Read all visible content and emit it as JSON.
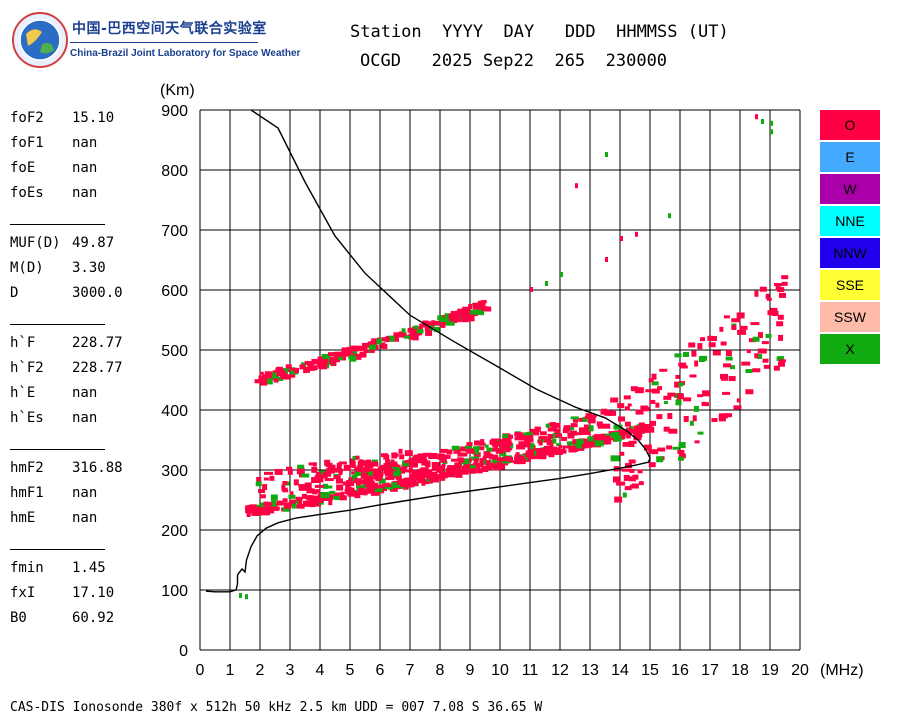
{
  "header": {
    "org_cn": "中国-巴西空间天气联合实验室",
    "org_en": "China-Brazil Joint Laboratory for Space Weather",
    "line1": "Station  YYYY  DAY   DDD  HHMMSS (UT)",
    "line2": "OCGD   2025 Sep22  265  230000"
  },
  "params": [
    {
      "label": "foF2",
      "value": "15.10"
    },
    {
      "label": "foF1",
      "value": "nan"
    },
    {
      "label": "foE",
      "value": "nan"
    },
    {
      "label": "foEs",
      "value": "nan"
    },
    {
      "label": "MUF(D)",
      "value": "49.87"
    },
    {
      "label": "M(D)",
      "value": "3.30"
    },
    {
      "label": "D",
      "value": "3000.0"
    },
    {
      "label": "h`F",
      "value": "228.77"
    },
    {
      "label": "h`F2",
      "value": "228.77"
    },
    {
      "label": "h`E",
      "value": "nan"
    },
    {
      "label": "h`Es",
      "value": "nan"
    },
    {
      "label": "hmF2",
      "value": "316.88"
    },
    {
      "label": "hmF1",
      "value": "nan"
    },
    {
      "label": "hmE",
      "value": "nan"
    },
    {
      "label": "fmin",
      "value": "1.45"
    },
    {
      "label": "fxI",
      "value": "17.10"
    },
    {
      "label": "B0",
      "value": "60.92"
    }
  ],
  "footer": "CAS-DIS Ionosonde 380f x 512h 50 kHz 2.5 km UDD = 007 7.08 S 36.65 W",
  "legend": [
    {
      "label": "O",
      "color": "#ff0044"
    },
    {
      "label": "E",
      "color": "#44aaff"
    },
    {
      "label": "W",
      "color": "#aa00aa"
    },
    {
      "label": "NNE",
      "color": "#00ffff"
    },
    {
      "label": "NNW",
      "color": "#2200ee"
    },
    {
      "label": "SSE",
      "color": "#ffff33"
    },
    {
      "label": "SSW",
      "color": "#ffbbaa"
    },
    {
      "label": "X",
      "color": "#11aa11"
    }
  ],
  "chart_data": {
    "type": "scatter",
    "ylabel": "(Km)",
    "xlabel": "(MHz)",
    "xlim": [
      0,
      20
    ],
    "ylim": [
      0,
      900
    ],
    "xticks": [
      0,
      1,
      2,
      3,
      4,
      5,
      6,
      7,
      8,
      9,
      10,
      11,
      12,
      13,
      14,
      15,
      16,
      17,
      18,
      19,
      20
    ],
    "yticks": [
      0,
      100,
      200,
      300,
      400,
      500,
      600,
      700,
      800,
      900
    ],
    "grid": true,
    "legend_position": "right",
    "series": [
      {
        "name": "O",
        "color": "#ff0044",
        "bands": [
          {
            "x": [
              1.5,
              15.0
            ],
            "h": [
              235,
              375
            ],
            "spread": 7
          },
          {
            "x": [
              1.8,
              9.5
            ],
            "h": [
              455,
              578
            ],
            "spread": 9
          },
          {
            "x": [
              1.8,
              7.0
            ],
            "h": [
              270,
              315
            ],
            "spread": 30
          },
          {
            "x": [
              5.0,
              13.5
            ],
            "h": [
              290,
              390
            ],
            "spread": 16
          },
          {
            "x": [
              13.5,
              19.5
            ],
            "h": [
              330,
              560
            ],
            "spread": 90
          }
        ],
        "points": [
          [
            12.5,
            778
          ],
          [
            13.5,
            655
          ],
          [
            14.0,
            690
          ],
          [
            14.5,
            697
          ],
          [
            18.5,
            893
          ],
          [
            11.0,
            605
          ]
        ]
      },
      {
        "name": "X",
        "color": "#11aa11",
        "points": [
          [
            13.5,
            830
          ],
          [
            15.6,
            728
          ],
          [
            19.0,
            882
          ],
          [
            19.0,
            868
          ],
          [
            18.7,
            885
          ],
          [
            11.5,
            615
          ],
          [
            12.0,
            630
          ],
          [
            1.3,
            95
          ],
          [
            1.5,
            93
          ]
        ]
      }
    ],
    "profile_curve": [
      [
        0.2,
        98
      ],
      [
        0.5,
        97
      ],
      [
        1.0,
        97
      ],
      [
        1.2,
        100
      ],
      [
        1.25,
        110
      ],
      [
        1.25,
        125
      ],
      [
        1.4,
        135
      ],
      [
        1.5,
        130
      ],
      [
        1.55,
        150
      ],
      [
        1.7,
        172
      ],
      [
        1.9,
        190
      ],
      [
        2.2,
        203
      ],
      [
        2.6,
        212
      ],
      [
        3.2,
        220
      ],
      [
        4.0,
        226
      ],
      [
        5.0,
        233
      ],
      [
        6.0,
        242
      ],
      [
        7.0,
        250
      ],
      [
        8.0,
        258
      ],
      [
        9.0,
        265
      ],
      [
        10.0,
        272
      ],
      [
        11.0,
        279
      ],
      [
        12.0,
        286
      ],
      [
        13.0,
        294
      ],
      [
        14.0,
        303
      ],
      [
        14.6,
        309
      ],
      [
        14.95,
        313
      ],
      [
        15.0,
        320
      ],
      [
        14.85,
        335
      ],
      [
        14.6,
        350
      ],
      [
        14.2,
        366
      ],
      [
        13.5,
        387
      ],
      [
        12.5,
        405
      ],
      [
        11.2,
        435
      ],
      [
        10.0,
        470
      ],
      [
        8.5,
        513
      ],
      [
        7.0,
        558
      ],
      [
        5.5,
        628
      ],
      [
        4.5,
        690
      ],
      [
        3.5,
        780
      ],
      [
        2.6,
        870
      ],
      [
        1.7,
        900
      ]
    ]
  }
}
